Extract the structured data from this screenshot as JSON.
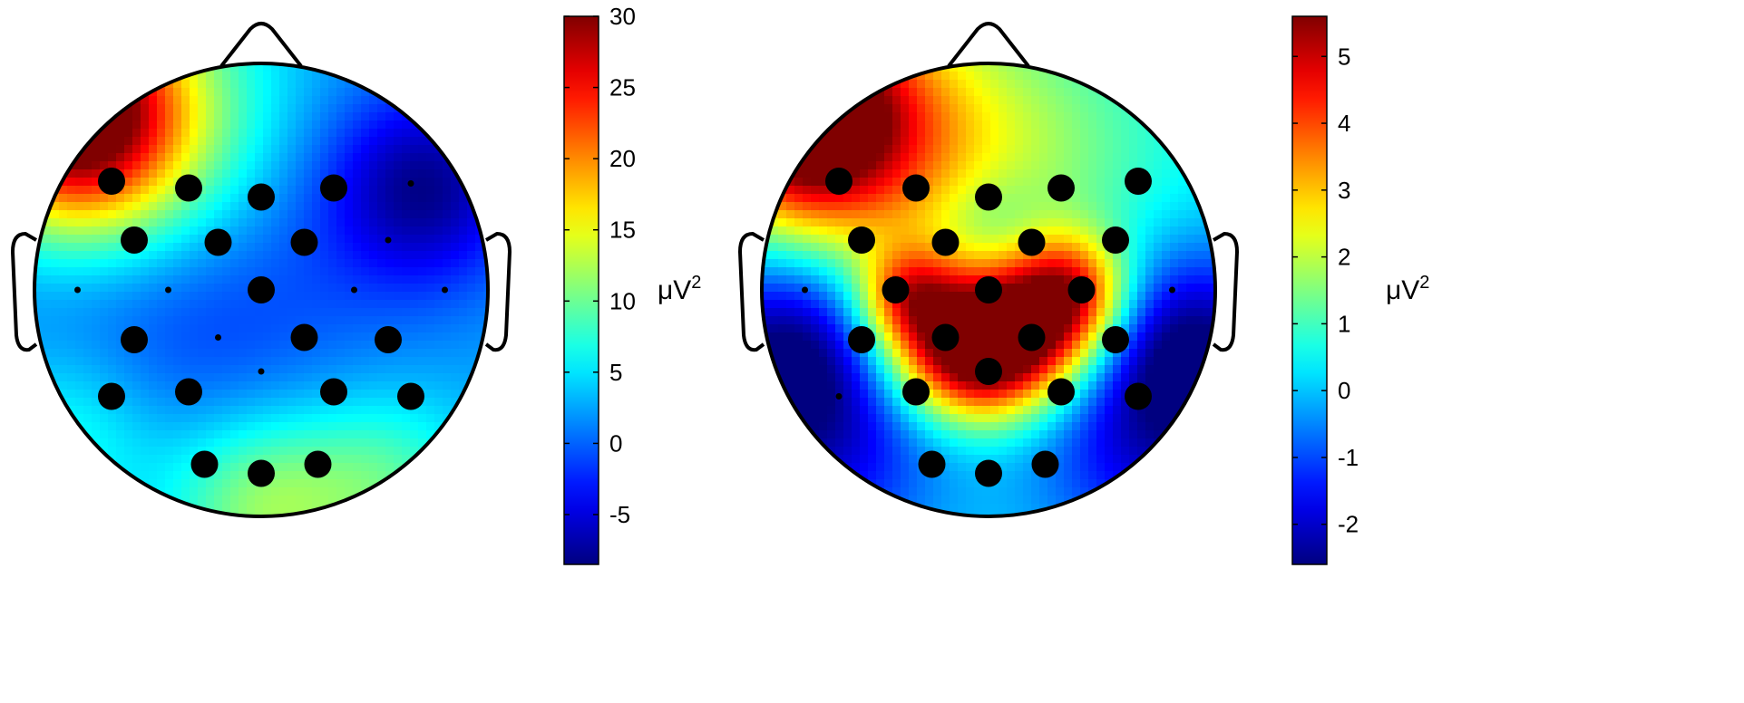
{
  "chart_data": [
    {
      "type": "heatmap",
      "title": "",
      "colormap": "jet",
      "clim": [
        -8.5,
        30
      ],
      "colorbar": {
        "ticks": [
          -5,
          0,
          5,
          10,
          15,
          20,
          25,
          30
        ],
        "tick_labels": [
          "-5",
          "0",
          "5",
          "10",
          "15",
          "20",
          "25",
          "30"
        ],
        "unit_base": "μV",
        "unit_exponent": "2"
      },
      "head_outline": true,
      "hotspots": [
        {
          "x": -0.84,
          "y": 0.78,
          "value": 30,
          "spread": 0.32
        },
        {
          "x": -0.55,
          "y": 0.68,
          "value": 14,
          "spread": 0.45
        },
        {
          "x": 0.72,
          "y": 0.45,
          "value": -7.5,
          "spread": 0.3
        },
        {
          "x": -0.35,
          "y": 0.05,
          "value": -3,
          "spread": 0.6
        },
        {
          "x": 0.0,
          "y": -0.95,
          "value": 12,
          "spread": 0.3
        },
        {
          "x": 0.55,
          "y": -0.85,
          "value": 9,
          "spread": 0.28
        },
        {
          "x": -0.85,
          "y": -0.65,
          "value": 8,
          "spread": 0.3
        }
      ],
      "base_value": 2.5,
      "large_electrodes": [
        [
          -0.66,
          0.48
        ],
        [
          -0.32,
          0.45
        ],
        [
          0.0,
          0.41
        ],
        [
          0.32,
          0.45
        ],
        [
          -0.56,
          0.22
        ],
        [
          -0.19,
          0.21
        ],
        [
          0.19,
          0.21
        ],
        [
          0.0,
          0.0
        ],
        [
          -0.56,
          -0.22
        ],
        [
          0.19,
          -0.21
        ],
        [
          0.56,
          -0.22
        ],
        [
          -0.66,
          -0.47
        ],
        [
          -0.32,
          -0.45
        ],
        [
          0.32,
          -0.45
        ],
        [
          0.66,
          -0.47
        ],
        [
          -0.25,
          -0.77
        ],
        [
          0.0,
          -0.81
        ],
        [
          0.25,
          -0.77
        ]
      ],
      "small_electrodes": [
        [
          0.66,
          0.47
        ],
        [
          0.56,
          0.22
        ],
        [
          -0.81,
          0.0
        ],
        [
          -0.41,
          0.0
        ],
        [
          0.41,
          0.0
        ],
        [
          0.81,
          0.0
        ],
        [
          -0.19,
          -0.21
        ],
        [
          0.0,
          -0.36
        ]
      ]
    },
    {
      "type": "heatmap",
      "title": "",
      "colormap": "jet",
      "clim": [
        -2.6,
        5.6
      ],
      "colorbar": {
        "ticks": [
          -2,
          -1,
          0,
          1,
          2,
          3,
          4,
          5
        ],
        "tick_labels": [
          "-2",
          "-1",
          "0",
          "1",
          "2",
          "3",
          "4",
          "5"
        ],
        "unit_base": "μV",
        "unit_exponent": "2"
      },
      "head_outline": true,
      "hotspots": [
        {
          "x": -0.84,
          "y": 0.78,
          "value": 5.5,
          "spread": 0.3
        },
        {
          "x": -0.55,
          "y": 0.68,
          "value": 3.2,
          "spread": 0.42
        },
        {
          "x": 0.2,
          "y": 0.62,
          "value": 1.4,
          "spread": 0.45
        },
        {
          "x": -0.19,
          "y": -0.23,
          "value": 3.9,
          "spread": 0.22
        },
        {
          "x": 0.21,
          "y": -0.16,
          "value": 4.3,
          "spread": 0.22
        },
        {
          "x": 0.0,
          "y": -0.3,
          "value": 3.0,
          "spread": 0.2
        },
        {
          "x": -0.36,
          "y": -0.02,
          "value": 2.8,
          "spread": 0.15
        },
        {
          "x": 0.38,
          "y": 0.0,
          "value": 3.0,
          "spread": 0.17
        },
        {
          "x": 0.02,
          "y": 0.3,
          "value": -0.4,
          "spread": 0.16
        },
        {
          "x": -0.9,
          "y": -0.25,
          "value": -2.4,
          "spread": 0.3
        },
        {
          "x": 0.9,
          "y": -0.25,
          "value": -2.4,
          "spread": 0.3
        },
        {
          "x": -0.7,
          "y": -0.7,
          "value": -1.6,
          "spread": 0.35
        },
        {
          "x": 0.7,
          "y": -0.7,
          "value": -1.6,
          "spread": 0.35
        }
      ],
      "base_value": 0.2,
      "large_electrodes": [
        [
          -0.66,
          0.48
        ],
        [
          -0.32,
          0.45
        ],
        [
          0.0,
          0.41
        ],
        [
          0.32,
          0.45
        ],
        [
          0.66,
          0.48
        ],
        [
          -0.56,
          0.22
        ],
        [
          -0.19,
          0.21
        ],
        [
          0.19,
          0.21
        ],
        [
          0.56,
          0.22
        ],
        [
          -0.41,
          0.0
        ],
        [
          0.0,
          0.0
        ],
        [
          0.41,
          0.0
        ],
        [
          -0.56,
          -0.22
        ],
        [
          -0.19,
          -0.21
        ],
        [
          0.19,
          -0.21
        ],
        [
          0.56,
          -0.22
        ],
        [
          0.0,
          -0.36
        ],
        [
          -0.32,
          -0.45
        ],
        [
          0.32,
          -0.45
        ],
        [
          0.66,
          -0.47
        ],
        [
          -0.25,
          -0.77
        ],
        [
          0.0,
          -0.81
        ],
        [
          0.25,
          -0.77
        ]
      ],
      "small_electrodes": [
        [
          -0.81,
          0.0
        ],
        [
          0.81,
          0.0
        ],
        [
          -0.66,
          -0.47
        ]
      ]
    }
  ]
}
